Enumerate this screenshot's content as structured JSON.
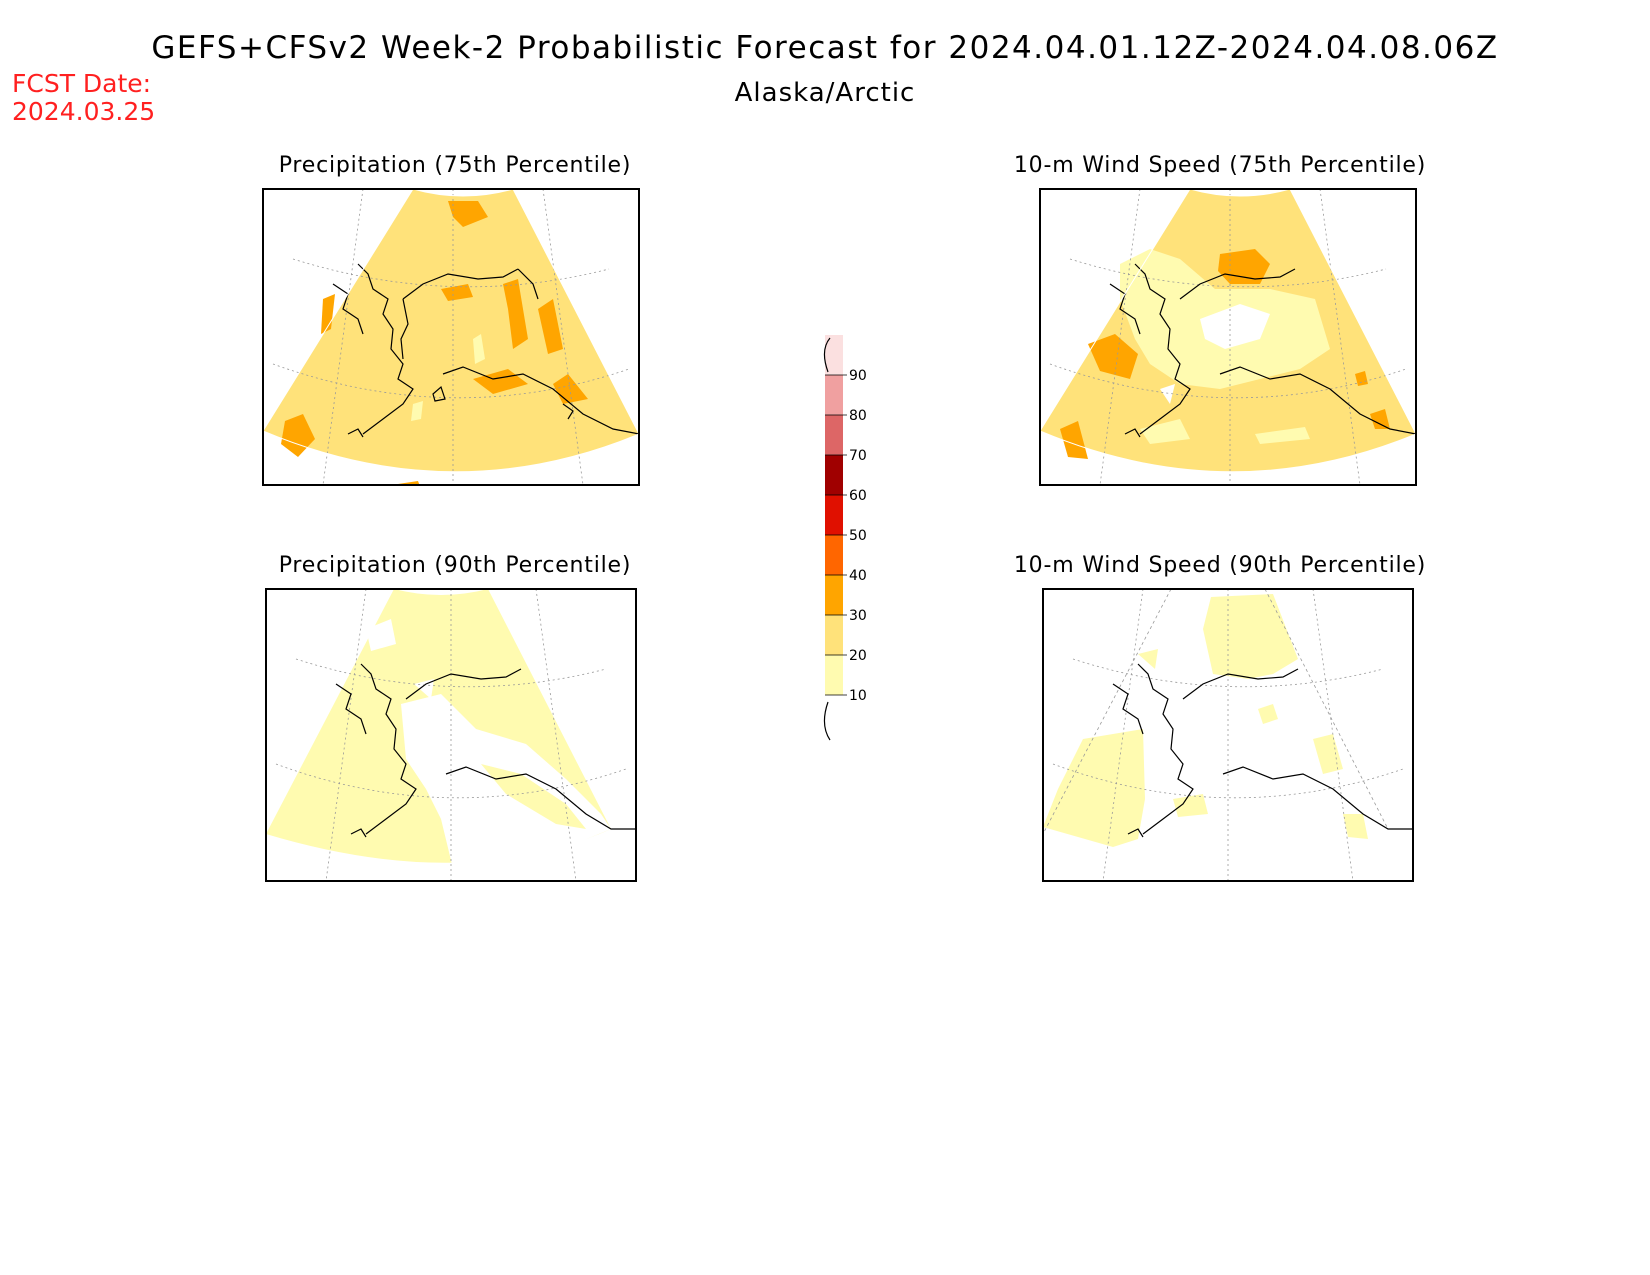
{
  "header": {
    "title": "GEFS+CFSv2 Week-2 Probabilistic Forecast for 2024.04.01.12Z-2024.04.08.06Z",
    "subtitle": "Alaska/Arctic",
    "fcst_date_label": "FCST Date:",
    "fcst_date_value": "2024.03.25"
  },
  "panels": [
    {
      "id": "precip75",
      "title": "Precipitation (75th Percentile)"
    },
    {
      "id": "wind75",
      "title": "10-m Wind Speed (75th Percentile)"
    },
    {
      "id": "precip90",
      "title": "Precipitation (90th Percentile)"
    },
    {
      "id": "wind90",
      "title": "10-m Wind Speed (90th Percentile)"
    }
  ],
  "colorbar": {
    "levels": [
      "10",
      "20",
      "30",
      "40",
      "50",
      "60",
      "70",
      "80",
      "90"
    ],
    "colors": [
      "#fffbb0",
      "#ffe27a",
      "#ffa500",
      "#ff6600",
      "#e01000",
      "#a00000",
      "#dd6666",
      "#f0a0a0",
      "#fbe0e0"
    ]
  },
  "colors": {
    "fill_light": "#fffbb0",
    "fill_mid": "#ffe27a",
    "fill_orange": "#ffa500",
    "fcst_date": "#ff2020"
  }
}
